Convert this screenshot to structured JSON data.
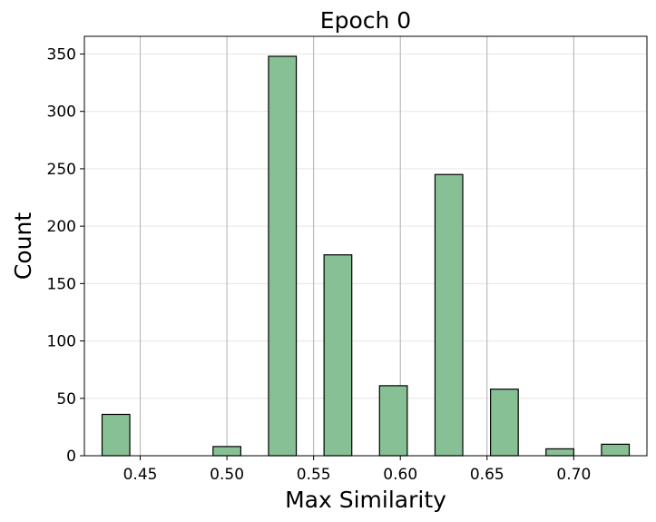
{
  "chart_data": {
    "type": "bar",
    "title": "Epoch 0",
    "xlabel": "Max Similarity",
    "ylabel": "Count",
    "bin_width": 0.016,
    "bins": [
      {
        "x0": 0.428,
        "x1": 0.444,
        "count": 36
      },
      {
        "x0": 0.444,
        "x1": 0.46,
        "count": 0
      },
      {
        "x0": 0.46,
        "x1": 0.476,
        "count": 0
      },
      {
        "x0": 0.492,
        "x1": 0.508,
        "count": 8
      },
      {
        "x0": 0.524,
        "x1": 0.54,
        "count": 348
      },
      {
        "x0": 0.556,
        "x1": 0.572,
        "count": 175
      },
      {
        "x0": 0.588,
        "x1": 0.604,
        "count": 61
      },
      {
        "x0": 0.62,
        "x1": 0.636,
        "count": 245
      },
      {
        "x0": 0.652,
        "x1": 0.668,
        "count": 58
      },
      {
        "x0": 0.684,
        "x1": 0.7,
        "count": 6
      },
      {
        "x0": 0.716,
        "x1": 0.732,
        "count": 10
      }
    ],
    "xlim": [
      0.4178,
      0.7422
    ],
    "ylim": [
      0,
      365.4
    ],
    "xticks": [
      0.45,
      0.5,
      0.55,
      0.6,
      0.65,
      0.7
    ],
    "xtick_labels": [
      "0.45",
      "0.50",
      "0.55",
      "0.60",
      "0.65",
      "0.70"
    ],
    "yticks": [
      0,
      50,
      100,
      150,
      200,
      250,
      300,
      350
    ],
    "ytick_labels": [
      "0",
      "50",
      "100",
      "150",
      "200",
      "250",
      "300",
      "350"
    ],
    "grid": {
      "x": true,
      "y": true
    },
    "colors": {
      "bar_fill": "#87c094",
      "bar_edge": "#000000",
      "grid_x": "#b0b0b0",
      "grid_y": "#e6e6e6"
    }
  }
}
